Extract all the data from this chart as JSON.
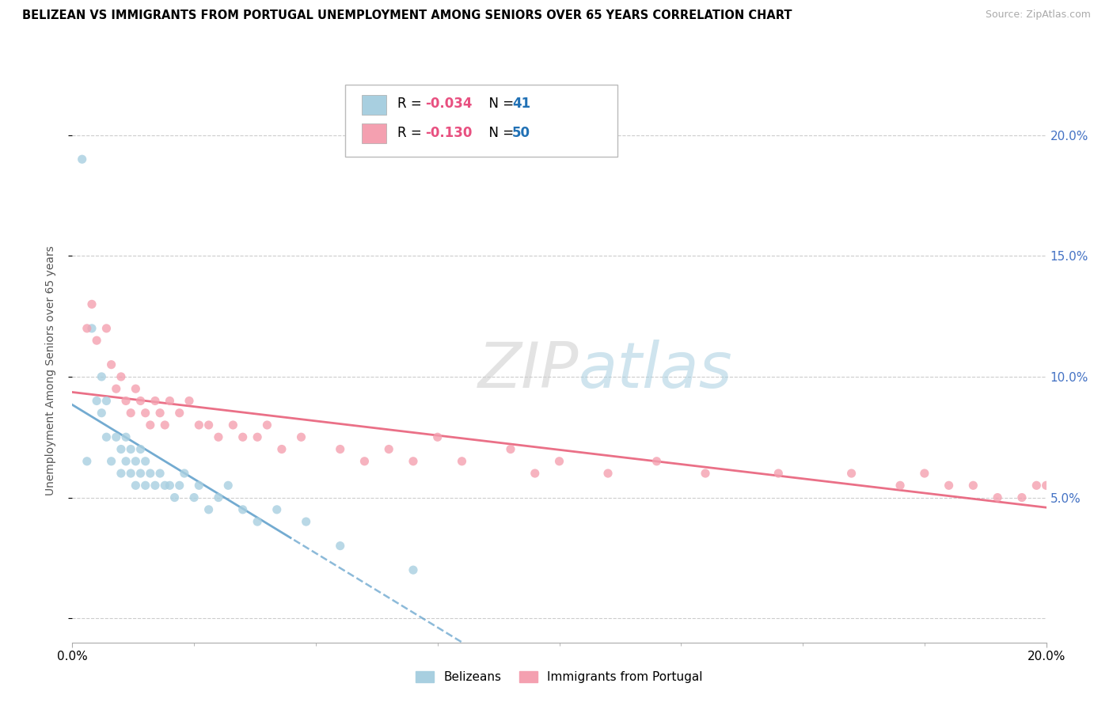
{
  "title": "BELIZEAN VS IMMIGRANTS FROM PORTUGAL UNEMPLOYMENT AMONG SENIORS OVER 65 YEARS CORRELATION CHART",
  "source": "Source: ZipAtlas.com",
  "ylabel": "Unemployment Among Seniors over 65 years",
  "xlim": [
    0.0,
    0.2
  ],
  "ylim": [
    -0.01,
    0.215
  ],
  "ytick_vals": [
    0.0,
    0.05,
    0.1,
    0.15,
    0.2
  ],
  "ytick_labels_right": [
    "",
    "5.0%",
    "10.0%",
    "15.0%",
    "20.0%"
  ],
  "xtick_vals": [
    0.0,
    0.2
  ],
  "xtick_labels": [
    "0.0%",
    "20.0%"
  ],
  "r1": "-0.034",
  "n1": "41",
  "r2": "-0.130",
  "n2": "50",
  "color_blue": "#a8cfe0",
  "color_pink": "#f4a0b0",
  "color_blue_line": "#5b9dc9",
  "color_pink_line": "#e8607a",
  "watermark_zip": "ZIP",
  "watermark_atlas": "atlas",
  "belizean_x": [
    0.002,
    0.003,
    0.004,
    0.005,
    0.006,
    0.006,
    0.007,
    0.007,
    0.008,
    0.009,
    0.01,
    0.01,
    0.011,
    0.011,
    0.012,
    0.012,
    0.013,
    0.013,
    0.014,
    0.014,
    0.015,
    0.015,
    0.016,
    0.017,
    0.018,
    0.019,
    0.02,
    0.021,
    0.022,
    0.023,
    0.025,
    0.026,
    0.028,
    0.03,
    0.032,
    0.035,
    0.038,
    0.042,
    0.048,
    0.055,
    0.07
  ],
  "belizean_y": [
    0.19,
    0.065,
    0.12,
    0.09,
    0.085,
    0.1,
    0.075,
    0.09,
    0.065,
    0.075,
    0.06,
    0.07,
    0.065,
    0.075,
    0.06,
    0.07,
    0.065,
    0.055,
    0.06,
    0.07,
    0.055,
    0.065,
    0.06,
    0.055,
    0.06,
    0.055,
    0.055,
    0.05,
    0.055,
    0.06,
    0.05,
    0.055,
    0.045,
    0.05,
    0.055,
    0.045,
    0.04,
    0.045,
    0.04,
    0.03,
    0.02
  ],
  "portugal_x": [
    0.003,
    0.004,
    0.005,
    0.007,
    0.008,
    0.009,
    0.01,
    0.011,
    0.012,
    0.013,
    0.014,
    0.015,
    0.016,
    0.017,
    0.018,
    0.019,
    0.02,
    0.022,
    0.024,
    0.026,
    0.028,
    0.03,
    0.033,
    0.035,
    0.038,
    0.04,
    0.043,
    0.047,
    0.055,
    0.06,
    0.065,
    0.07,
    0.075,
    0.08,
    0.09,
    0.095,
    0.1,
    0.11,
    0.12,
    0.13,
    0.145,
    0.16,
    0.17,
    0.175,
    0.18,
    0.185,
    0.19,
    0.195,
    0.198,
    0.2
  ],
  "portugal_y": [
    0.12,
    0.13,
    0.115,
    0.12,
    0.105,
    0.095,
    0.1,
    0.09,
    0.085,
    0.095,
    0.09,
    0.085,
    0.08,
    0.09,
    0.085,
    0.08,
    0.09,
    0.085,
    0.09,
    0.08,
    0.08,
    0.075,
    0.08,
    0.075,
    0.075,
    0.08,
    0.07,
    0.075,
    0.07,
    0.065,
    0.07,
    0.065,
    0.075,
    0.065,
    0.07,
    0.06,
    0.065,
    0.06,
    0.065,
    0.06,
    0.06,
    0.06,
    0.055,
    0.06,
    0.055,
    0.055,
    0.05,
    0.05,
    0.055,
    0.055
  ],
  "blue_line_solid_end": 0.045,
  "pink_line_start": 0.0,
  "pink_line_end": 0.2
}
